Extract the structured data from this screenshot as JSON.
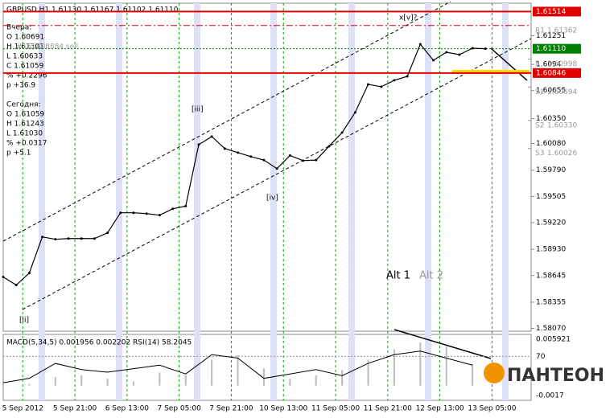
{
  "chart_data": {
    "type": "line",
    "title": "GBPUSD,H1 1.61130 1.61167 1.61102 1.61110",
    "info": {
      "yesterday": {
        "title": "Вчера:",
        "lines": [
          "O 1.60691",
          "H 1.61301",
          "L 1.60633",
          "C 1.61059",
          "% +0.2296",
          "p +36.9"
        ]
      },
      "order": "#151808884 sell",
      "today": {
        "title": "Сегодня:",
        "lines": [
          "O 1.61059",
          "H 1.61243",
          "L 1.61030",
          "% +0.0317",
          "p +5.1"
        ]
      }
    },
    "xlim": [
      0,
      162
    ],
    "xticks": [
      {
        "value": 6,
        "label": "5 Sep 2012"
      },
      {
        "value": 22,
        "label": "5 Sep 21:00"
      },
      {
        "value": 38,
        "label": "6 Sep 13:00"
      },
      {
        "value": 54,
        "label": "7 Sep 05:00"
      },
      {
        "value": 70,
        "label": "7 Sep 21:00"
      },
      {
        "value": 86,
        "label": "10 Sep 13:00"
      },
      {
        "value": 102,
        "label": "11 Sep 05:00"
      },
      {
        "value": 118,
        "label": "11 Sep 21:00"
      },
      {
        "value": 134,
        "label": "12 Sep 13:00"
      },
      {
        "value": 150,
        "label": "13 Sep 05:00"
      }
    ],
    "ylim": [
      1.5804,
      1.61605
    ],
    "yticks": [
      1.61251,
      1.6094,
      1.60655,
      {
        "value": 1.6035,
        "label": "1.60350"
      },
      {
        "value": 1.6008,
        "label": "1.60080"
      },
      {
        "value": 1.5979,
        "label": "1.59790"
      },
      1.59505,
      {
        "value": 1.5922,
        "label": "1.59220"
      },
      {
        "value": 1.5893,
        "label": "1.58930"
      },
      1.58645,
      1.58355,
      {
        "value": 1.5807,
        "label": "1.58070"
      }
    ],
    "x": [
      0,
      4,
      8,
      12,
      16,
      20,
      24,
      28,
      32,
      36,
      40,
      44,
      48,
      52,
      56,
      60,
      64,
      68,
      72,
      76,
      80,
      84,
      88,
      92,
      96,
      100,
      104,
      108,
      112,
      116,
      120,
      124,
      128,
      132,
      136,
      140,
      144,
      148
    ],
    "series": [
      {
        "name": "GBPUSD",
        "color": "#000000",
        "values": [
          1.58629,
          1.58541,
          1.58672,
          1.59065,
          1.59039,
          1.59047,
          1.59047,
          1.59047,
          1.59109,
          1.59327,
          1.59327,
          1.59318,
          1.59301,
          1.5937,
          1.594,
          1.60068,
          1.60156,
          1.60025,
          1.59981,
          1.59938,
          1.599,
          1.59807,
          1.5995,
          1.59894,
          1.599,
          1.6005,
          1.60199,
          1.60418,
          1.60723,
          1.60697,
          1.60767,
          1.6081,
          1.61159,
          1.60985,
          1.61072,
          1.61046,
          1.61116,
          1.6111
        ]
      }
    ],
    "levels": [
      {
        "value": 1.61514,
        "label": "1.61514",
        "color": "#e00000"
      },
      {
        "value": 1.6111,
        "label": "1.61110",
        "color": "#008000"
      },
      {
        "value": 1.60846,
        "label": "1.60846",
        "color": "#e00000"
      }
    ],
    "pivots": [
      {
        "name": "R1",
        "value": 1.61362,
        "value_label": "1.61362"
      },
      {
        "name": "P",
        "value": 1.60998,
        "value_label": "1.60998"
      },
      {
        "name": "S1",
        "value": 1.60694,
        "value_label": "1.60694"
      },
      {
        "name": "S2",
        "value": 1.6033,
        "value_label": "1.60330"
      },
      {
        "name": "S3",
        "value": 1.60026,
        "value_label": "1.60026"
      }
    ],
    "annotations": [
      "[ii]",
      "[iii]",
      "[iv]",
      "x[v]?",
      "Alt 1",
      "Alt 2"
    ],
    "indicator": {
      "title": "MACD(5,34,5) 0.001956 0.002202 RSI(14) 58.2045",
      "x": [
        0,
        8,
        16,
        24,
        32,
        40,
        48,
        56,
        64,
        72,
        80,
        88,
        96,
        104,
        112,
        120,
        128,
        136,
        144
      ],
      "macd_ylim": [
        -0.0017,
        0.005921
      ],
      "macd": [
        0.0005,
        0.0002,
        0.001,
        0.0012,
        0.0008,
        0.0005,
        0.0015,
        0.0012,
        0.003,
        0.0035,
        0.002,
        0.0008,
        0.0012,
        0.0018,
        0.003,
        0.0042,
        0.005,
        0.0045,
        0.0025
      ],
      "rsi_ylim": [
        20,
        95
      ],
      "rsi_ticks": [
        70
      ],
      "rsi": [
        40,
        45,
        62,
        55,
        52,
        56,
        60,
        50,
        72,
        68,
        45,
        50,
        55,
        48,
        62,
        72,
        76,
        68,
        60
      ]
    },
    "logo": "ПАНТЕОН"
  }
}
